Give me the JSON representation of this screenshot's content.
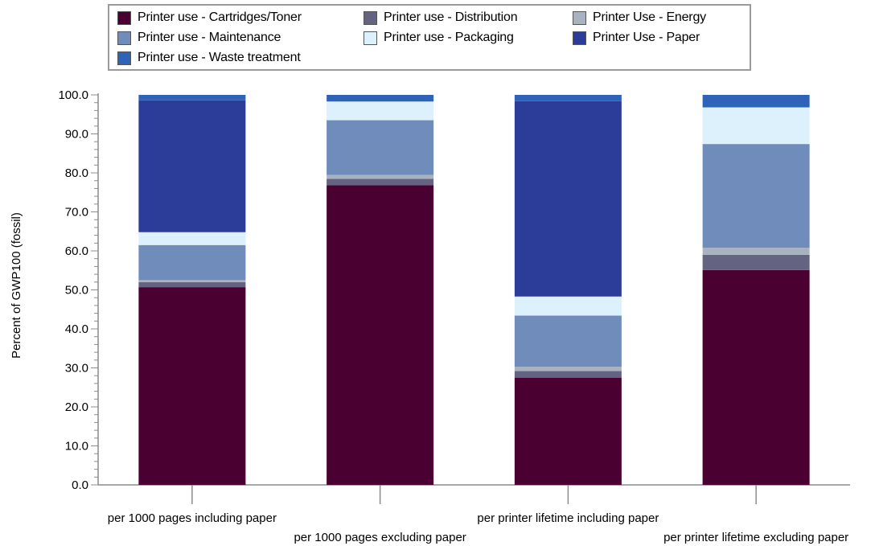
{
  "chart_data": {
    "type": "bar",
    "stacked": true,
    "categories": [
      "per 1000 pages including paper",
      "per 1000 pages excluding paper",
      "per printer lifetime including paper",
      "per printer lifetime excluding paper"
    ],
    "series": [
      {
        "name": "Printer use - Cartridges/Toner",
        "color": "#4a0030",
        "values": [
          50.7,
          76.8,
          27.5,
          55.1
        ]
      },
      {
        "name": "Printer use - Distribution",
        "color": "#646482",
        "values": [
          1.3,
          1.7,
          1.7,
          3.9
        ]
      },
      {
        "name": "Printer Use - Energy",
        "color": "#a9b2bf",
        "values": [
          0.5,
          1.0,
          1.1,
          1.8
        ]
      },
      {
        "name": "Printer use - Maintenance",
        "color": "#6f8cbb",
        "values": [
          9.0,
          14.0,
          13.1,
          26.6
        ]
      },
      {
        "name": "Printer use - Packaging",
        "color": "#dcf1fc",
        "values": [
          3.3,
          4.8,
          4.9,
          9.4
        ]
      },
      {
        "name": "Printer Use - Paper",
        "color": "#2c3c99",
        "values": [
          33.8,
          0.0,
          50.1,
          0.0
        ]
      },
      {
        "name": "Printer use - Waste treatment",
        "color": "#2f63b8",
        "values": [
          1.4,
          1.7,
          1.6,
          3.2
        ]
      }
    ],
    "ylabel": "Percent of GWP100 (fossil)",
    "xlabel": "",
    "ylim": [
      0,
      100
    ],
    "y_ticks": [
      "0.0",
      "10.0",
      "20.0",
      "30.0",
      "40.0",
      "50.0",
      "60.0",
      "70.0",
      "80.0",
      "90.0",
      "100.0"
    ],
    "grid": false,
    "legend_position": "top"
  }
}
